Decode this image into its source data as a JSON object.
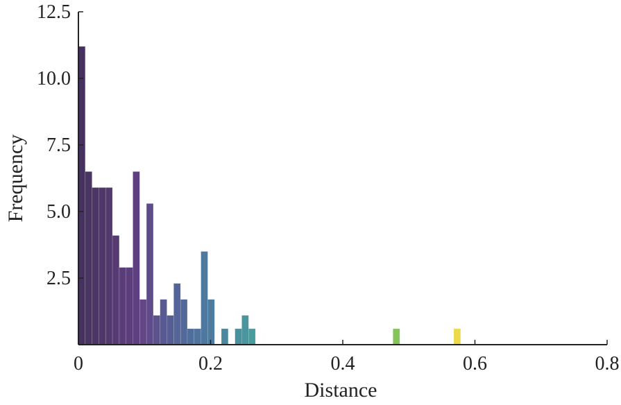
{
  "chart_data": {
    "type": "bar",
    "xlabel": "Distance",
    "ylabel": "Frequency",
    "xlim": [
      0,
      0.8
    ],
    "ylim": [
      0,
      12.5
    ],
    "xticks": [
      "0",
      "0.2",
      "0.4",
      "0.6",
      "0.8"
    ],
    "yticks": [
      "2.5",
      "5.0",
      "7.5",
      "10.0",
      "12.5"
    ],
    "grid": false,
    "legend": "none",
    "colormap": "viridis",
    "bin_width": 0.0103,
    "bins": [
      {
        "x_start": 0.0,
        "value": 11.2,
        "color": "#46325e"
      },
      {
        "x_start": 0.0103,
        "value": 6.5,
        "color": "#4a3462"
      },
      {
        "x_start": 0.0206,
        "value": 5.9,
        "color": "#4d3666"
      },
      {
        "x_start": 0.0309,
        "value": 5.9,
        "color": "#50376a"
      },
      {
        "x_start": 0.0412,
        "value": 5.9,
        "color": "#53396e"
      },
      {
        "x_start": 0.0515,
        "value": 4.1,
        "color": "#563b72"
      },
      {
        "x_start": 0.0618,
        "value": 2.9,
        "color": "#593d76"
      },
      {
        "x_start": 0.0721,
        "value": 2.9,
        "color": "#5c3f7a"
      },
      {
        "x_start": 0.0824,
        "value": 6.5,
        "color": "#5e4080"
      },
      {
        "x_start": 0.0927,
        "value": 1.7,
        "color": "#614584"
      },
      {
        "x_start": 0.103,
        "value": 5.3,
        "color": "#5e4c8a"
      },
      {
        "x_start": 0.1133,
        "value": 1.1,
        "color": "#5b528e"
      },
      {
        "x_start": 0.1236,
        "value": 1.7,
        "color": "#585892"
      },
      {
        "x_start": 0.1339,
        "value": 1.1,
        "color": "#565d95"
      },
      {
        "x_start": 0.1442,
        "value": 2.3,
        "color": "#546398"
      },
      {
        "x_start": 0.1545,
        "value": 1.7,
        "color": "#52699a"
      },
      {
        "x_start": 0.1648,
        "value": 0.6,
        "color": "#506e9c"
      },
      {
        "x_start": 0.1751,
        "value": 0.6,
        "color": "#4f739d"
      },
      {
        "x_start": 0.1854,
        "value": 3.5,
        "color": "#4e789e"
      },
      {
        "x_start": 0.1957,
        "value": 1.7,
        "color": "#4d7c9f"
      },
      {
        "x_start": 0.2163,
        "value": 0.6,
        "color": "#4b879f"
      },
      {
        "x_start": 0.2369,
        "value": 0.6,
        "color": "#4a919f"
      },
      {
        "x_start": 0.2472,
        "value": 1.1,
        "color": "#49969e"
      },
      {
        "x_start": 0.2575,
        "value": 0.6,
        "color": "#499c9d"
      },
      {
        "x_start": 0.476,
        "value": 0.6,
        "color": "#84c45a"
      },
      {
        "x_start": 0.568,
        "value": 0.6,
        "color": "#ecd94a"
      }
    ]
  }
}
